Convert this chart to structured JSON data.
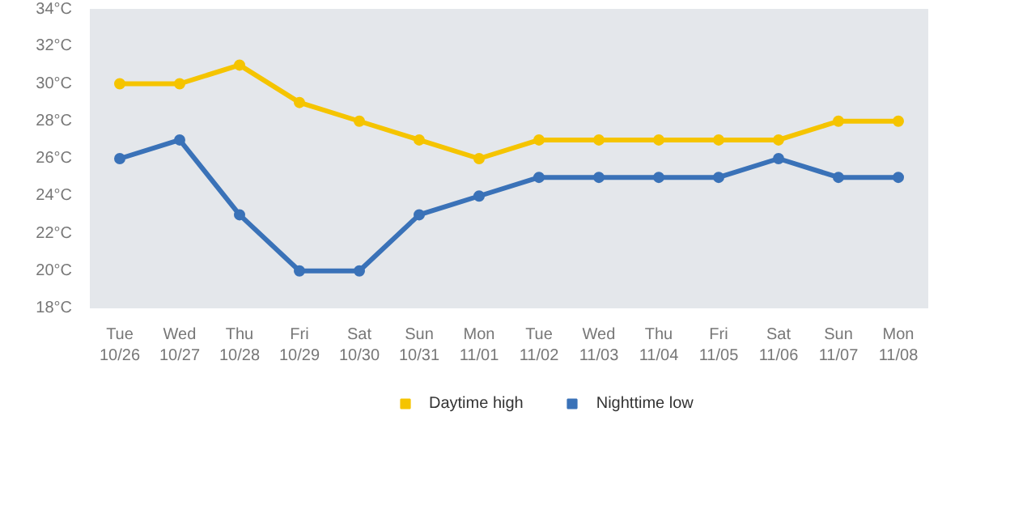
{
  "chart_data": {
    "type": "line",
    "categories": [
      "Tue\n10/26",
      "Wed\n10/27",
      "Thu\n10/28",
      "Fri\n10/29",
      "Sat\n10/30",
      "Sun\n10/31",
      "Mon\n11/01",
      "Tue\n11/02",
      "Wed\n11/03",
      "Thu\n11/04",
      "Fri\n11/05",
      "Sat\n11/06",
      "Sun\n11/07",
      "Mon\n11/08"
    ],
    "series": [
      {
        "name": "Daytime high",
        "color": "#f5c400",
        "values": [
          30,
          30,
          31,
          29,
          28,
          27,
          26,
          27,
          27,
          27,
          27,
          27,
          28,
          28
        ]
      },
      {
        "name": "Nighttime low",
        "color": "#3a72b8",
        "values": [
          26,
          27,
          23,
          20,
          20,
          23,
          24,
          25,
          25,
          25,
          25,
          26,
          25,
          25
        ]
      }
    ],
    "ylim": [
      18,
      34
    ],
    "yticks": [
      {
        "value": 18,
        "label": "18°C"
      },
      {
        "value": 20,
        "label": "20°C"
      },
      {
        "value": 22,
        "label": "22°C"
      },
      {
        "value": 24,
        "label": "24°C"
      },
      {
        "value": 26,
        "label": "26°C"
      },
      {
        "value": 28,
        "label": "28°C"
      },
      {
        "value": 30,
        "label": "30°C"
      },
      {
        "value": 32,
        "label": "32°C"
      },
      {
        "value": 34,
        "label": "34°C"
      }
    ],
    "legend": "bottom",
    "marker": "circle",
    "line_style": "solid"
  }
}
